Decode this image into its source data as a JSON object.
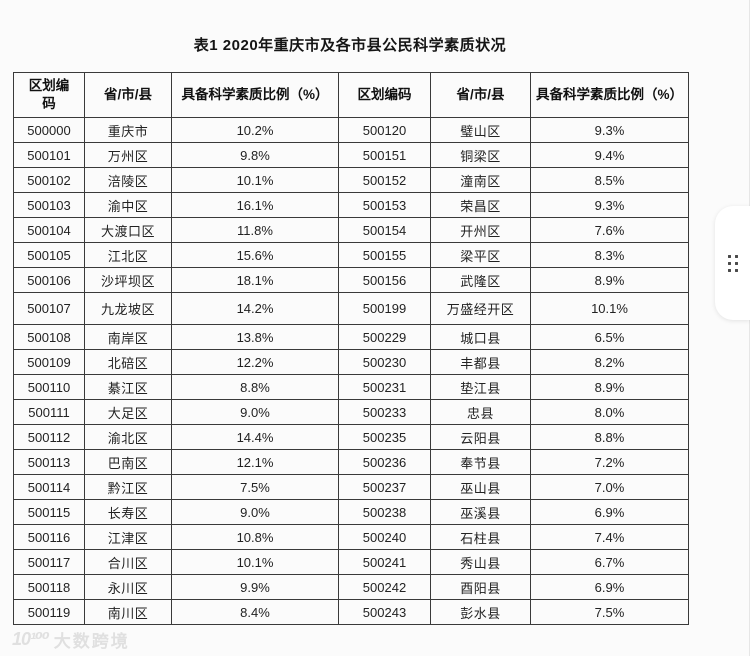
{
  "title": "表1 2020年重庆市及各市县公民科学素质状况",
  "table": {
    "headers_left": {
      "code": "区划编\n码",
      "region": "省/市/县",
      "pct": "具备科学素质比例（%）"
    },
    "headers_right": {
      "code": "区划编码",
      "region": "省/市/县",
      "pct": "具备科学素质比例（%）"
    },
    "rows": [
      {
        "c1": "500000",
        "n1": "重庆市",
        "p1": "10.2%",
        "c2": "500120",
        "n2": "璧山区",
        "p2": "9.3%"
      },
      {
        "c1": "500101",
        "n1": "万州区",
        "p1": "9.8%",
        "c2": "500151",
        "n2": "铜梁区",
        "p2": "9.4%"
      },
      {
        "c1": "500102",
        "n1": "涪陵区",
        "p1": "10.1%",
        "c2": "500152",
        "n2": "潼南区",
        "p2": "8.5%"
      },
      {
        "c1": "500103",
        "n1": "渝中区",
        "p1": "16.1%",
        "c2": "500153",
        "n2": "荣昌区",
        "p2": "9.3%"
      },
      {
        "c1": "500104",
        "n1": "大渡口区",
        "p1": "11.8%",
        "c2": "500154",
        "n2": "开州区",
        "p2": "7.6%"
      },
      {
        "c1": "500105",
        "n1": "江北区",
        "p1": "15.6%",
        "c2": "500155",
        "n2": "梁平区",
        "p2": "8.3%"
      },
      {
        "c1": "500106",
        "n1": "沙坪坝区",
        "p1": "18.1%",
        "c2": "500156",
        "n2": "武隆区",
        "p2": "8.9%"
      },
      {
        "c1": "500107",
        "n1": "九龙坡区",
        "p1": "14.2%",
        "c2": "500199",
        "n2": "万盛经开区",
        "p2": "10.1%"
      },
      {
        "c1": "500108",
        "n1": "南岸区",
        "p1": "13.8%",
        "c2": "500229",
        "n2": "城口县",
        "p2": "6.5%"
      },
      {
        "c1": "500109",
        "n1": "北碚区",
        "p1": "12.2%",
        "c2": "500230",
        "n2": "丰都县",
        "p2": "8.2%"
      },
      {
        "c1": "500110",
        "n1": "綦江区",
        "p1": "8.8%",
        "c2": "500231",
        "n2": "垫江县",
        "p2": "8.9%"
      },
      {
        "c1": "500111",
        "n1": "大足区",
        "p1": "9.0%",
        "c2": "500233",
        "n2": "忠县",
        "p2": "8.0%"
      },
      {
        "c1": "500112",
        "n1": "渝北区",
        "p1": "14.4%",
        "c2": "500235",
        "n2": "云阳县",
        "p2": "8.8%"
      },
      {
        "c1": "500113",
        "n1": "巴南区",
        "p1": "12.1%",
        "c2": "500236",
        "n2": "奉节县",
        "p2": "7.2%"
      },
      {
        "c1": "500114",
        "n1": "黔江区",
        "p1": "7.5%",
        "c2": "500237",
        "n2": "巫山县",
        "p2": "7.0%"
      },
      {
        "c1": "500115",
        "n1": "长寿区",
        "p1": "9.0%",
        "c2": "500238",
        "n2": "巫溪县",
        "p2": "6.9%"
      },
      {
        "c1": "500116",
        "n1": "江津区",
        "p1": "10.8%",
        "c2": "500240",
        "n2": "石柱县",
        "p2": "7.4%"
      },
      {
        "c1": "500117",
        "n1": "合川区",
        "p1": "10.1%",
        "c2": "500241",
        "n2": "秀山县",
        "p2": "6.7%"
      },
      {
        "c1": "500118",
        "n1": "永川区",
        "p1": "9.9%",
        "c2": "500242",
        "n2": "酉阳县",
        "p2": "6.9%"
      },
      {
        "c1": "500119",
        "n1": "南川区",
        "p1": "8.4%",
        "c2": "500243",
        "n2": "彭水县",
        "p2": "7.5%"
      }
    ]
  },
  "watermark": {
    "logo": "10¹⁰⁰",
    "text": "大数跨境"
  },
  "colors": {
    "background": "#fbfbfb",
    "table_border": "#3a3a3a",
    "text": "#1f1f1f",
    "watermark": "#e0e0e0"
  }
}
